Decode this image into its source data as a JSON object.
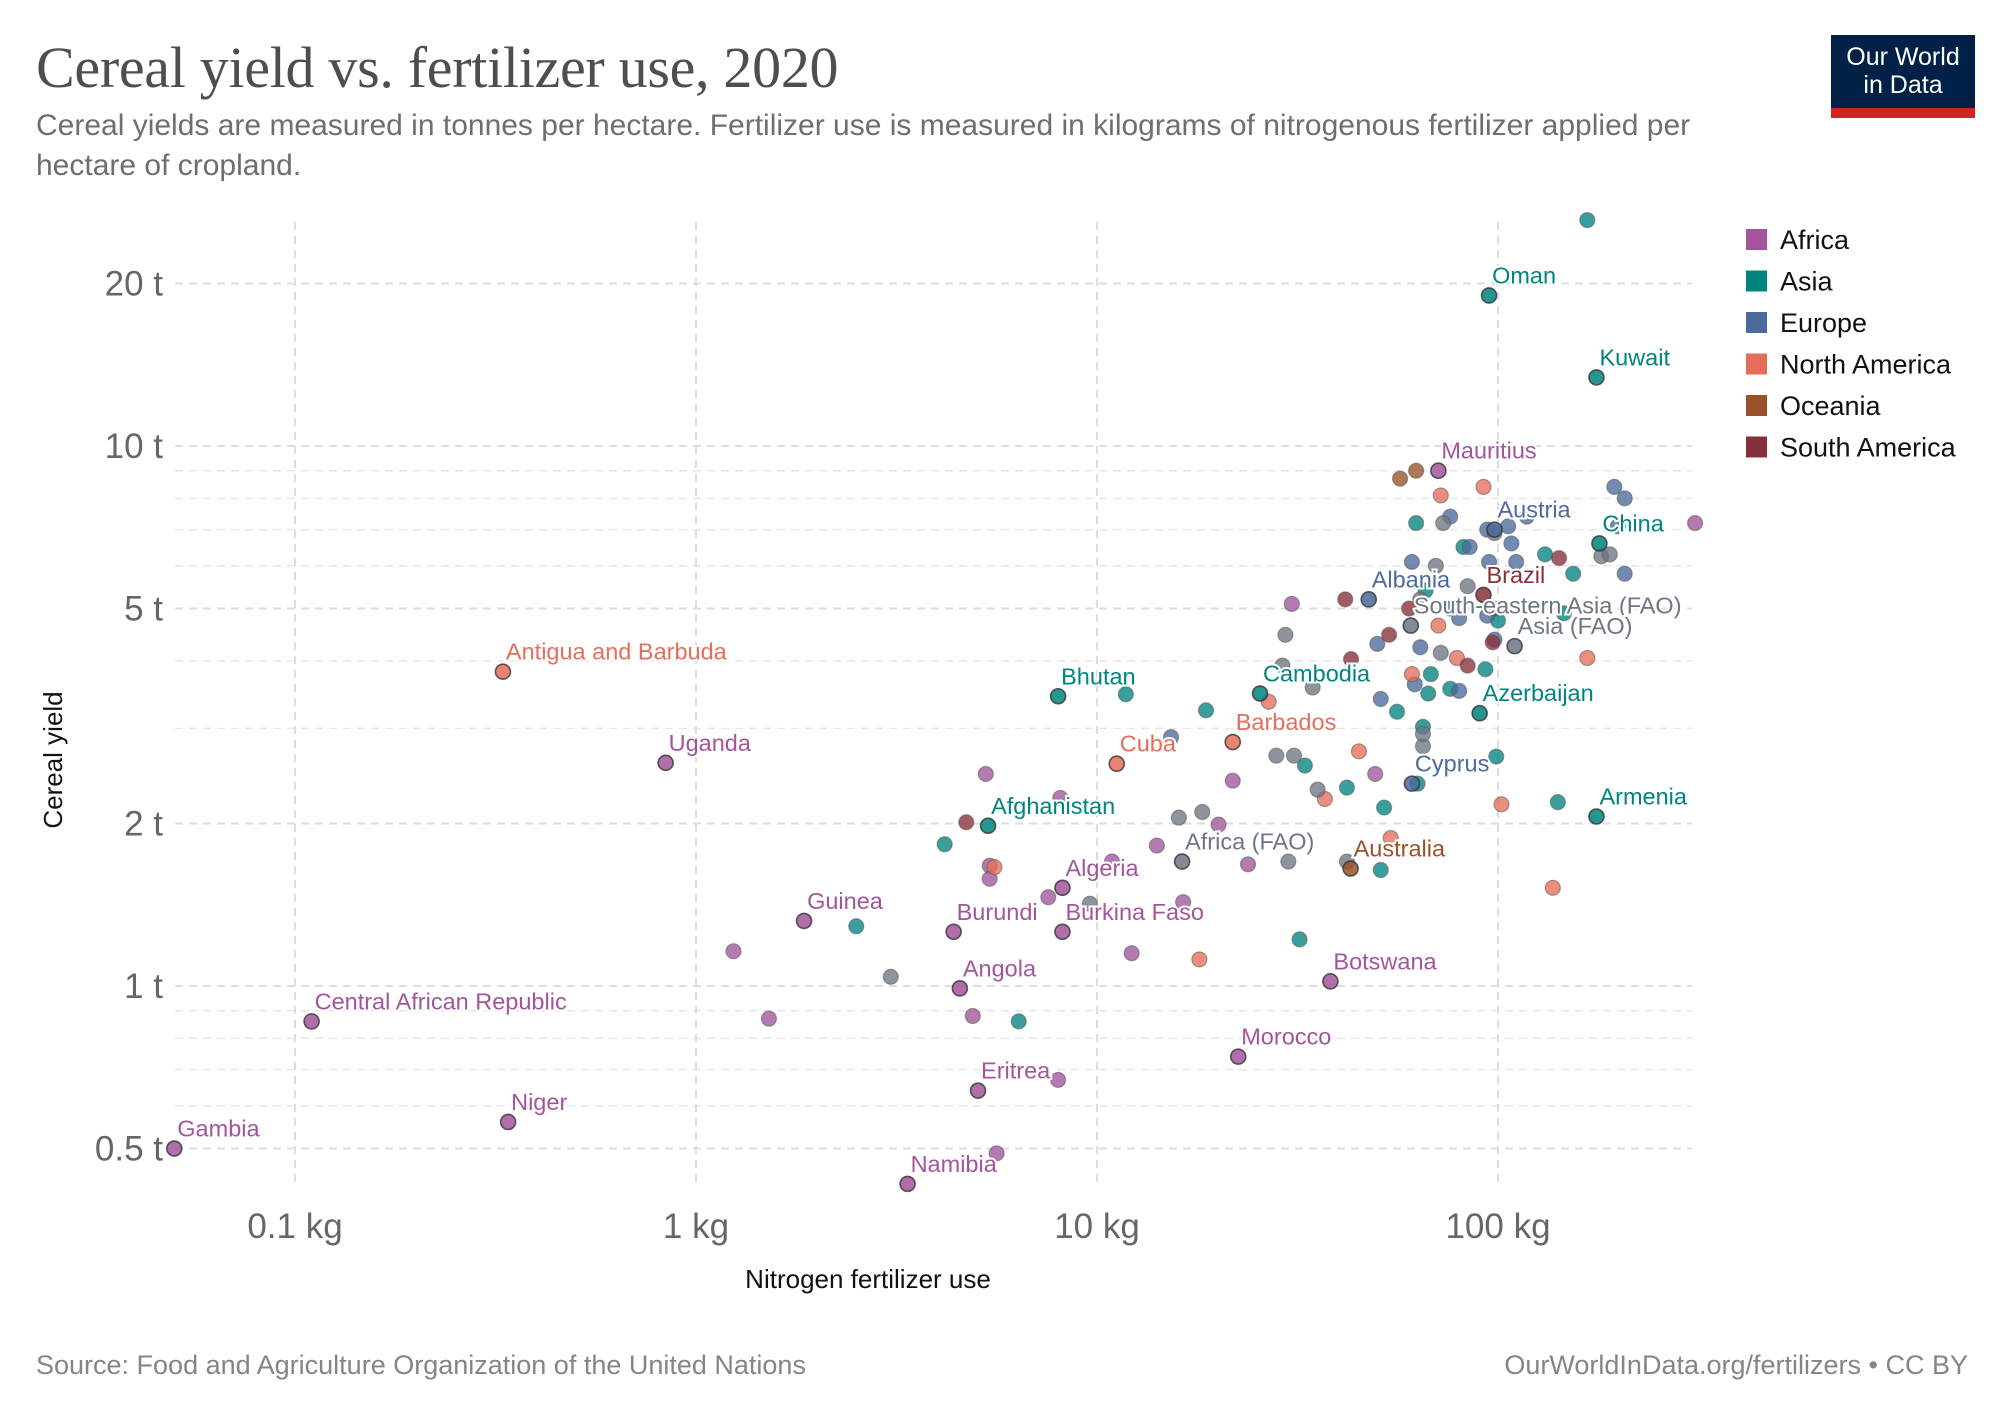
{
  "header": {
    "title": "Cereal yield vs. fertilizer use, 2020",
    "subtitle": "Cereal yields are measured in tonnes per hectare. Fertilizer use is measured in kilograms of nitrogenous fertilizer applied per hectare of cropland.",
    "logo_line1": "Our World",
    "logo_line2": "in Data"
  },
  "footer": {
    "source": "Source: Food and Agriculture Organization of the United Nations",
    "credit": "OurWorldInData.org/fertilizers • CC BY"
  },
  "colors": {
    "Africa": "#a2559c",
    "Asia": "#00847e",
    "Europe": "#4c6a9c",
    "North America": "#e56e5a",
    "Oceania": "#9a5129",
    "South America": "#883039",
    "Aggregate": "#6d7683",
    "logo_bg": "#002147",
    "logo_bar": "#ce261e"
  },
  "chart_data": {
    "type": "scatter",
    "title": "Cereal yield vs. fertilizer use, 2020",
    "xlabel": "Nitrogen fertilizer use",
    "ylabel": "Cereal yield",
    "xscale": "log",
    "yscale": "log",
    "xlim": [
      0.044,
      340
    ],
    "ylim": [
      0.41,
      27
    ],
    "x_ticks": [
      {
        "value": 0.1,
        "label": "0.1 kg"
      },
      {
        "value": 1,
        "label": "1 kg"
      },
      {
        "value": 10,
        "label": "10 kg"
      },
      {
        "value": 100,
        "label": "100 kg"
      }
    ],
    "y_ticks": [
      {
        "value": 0.5,
        "label": "0.5 t"
      },
      {
        "value": 1,
        "label": "1 t"
      },
      {
        "value": 2,
        "label": "2 t"
      },
      {
        "value": 5,
        "label": "5 t"
      },
      {
        "value": 10,
        "label": "10 t"
      },
      {
        "value": 20,
        "label": "20 t"
      }
    ],
    "y_minor_ticks": [
      0.6,
      0.7,
      0.8,
      0.9,
      3,
      4,
      6,
      7,
      8,
      9
    ],
    "grid": true,
    "legend_position": "right",
    "legend": [
      "Africa",
      "Asia",
      "Europe",
      "North America",
      "Oceania",
      "South America"
    ],
    "labeled_points": [
      {
        "name": "Oman",
        "x": 95,
        "y": 19.0,
        "region": "Asia"
      },
      {
        "name": "Kuwait",
        "x": 176,
        "y": 13.4,
        "region": "Asia"
      },
      {
        "name": "Mauritius",
        "x": 71,
        "y": 9.0,
        "region": "Africa"
      },
      {
        "name": "Austria",
        "x": 98,
        "y": 7.0,
        "region": "Europe"
      },
      {
        "name": "China",
        "x": 179,
        "y": 6.6,
        "region": "Asia"
      },
      {
        "name": "Brazil",
        "x": 92,
        "y": 5.3,
        "region": "South America"
      },
      {
        "name": "Albania",
        "x": 47.6,
        "y": 5.2,
        "region": "Europe"
      },
      {
        "name": "South-eastern Asia (FAO)",
        "x": 60.6,
        "y": 4.65,
        "region": "Aggregate"
      },
      {
        "name": "Asia (FAO)",
        "x": 110,
        "y": 4.26,
        "region": "Aggregate"
      },
      {
        "name": "Antigua and Barbuda",
        "x": 0.33,
        "y": 3.82,
        "region": "North America"
      },
      {
        "name": "Cambodia",
        "x": 25.5,
        "y": 3.48,
        "region": "Asia"
      },
      {
        "name": "Bhutan",
        "x": 8.0,
        "y": 3.44,
        "region": "Asia"
      },
      {
        "name": "Azerbaijan",
        "x": 90,
        "y": 3.2,
        "region": "Asia"
      },
      {
        "name": "Barbados",
        "x": 21.8,
        "y": 2.83,
        "region": "North America"
      },
      {
        "name": "Uganda",
        "x": 0.84,
        "y": 2.59,
        "region": "Africa"
      },
      {
        "name": "Cuba",
        "x": 11.2,
        "y": 2.58,
        "region": "North America"
      },
      {
        "name": "Cyprus",
        "x": 61,
        "y": 2.37,
        "region": "Europe"
      },
      {
        "name": "Armenia",
        "x": 176,
        "y": 2.06,
        "region": "Asia"
      },
      {
        "name": "Afghanistan",
        "x": 5.35,
        "y": 1.98,
        "region": "Asia"
      },
      {
        "name": "Africa (FAO)",
        "x": 16.3,
        "y": 1.7,
        "region": "Aggregate"
      },
      {
        "name": "Australia",
        "x": 42.9,
        "y": 1.65,
        "region": "Oceania"
      },
      {
        "name": "Algeria",
        "x": 8.2,
        "y": 1.52,
        "region": "Africa"
      },
      {
        "name": "Guinea",
        "x": 1.86,
        "y": 1.32,
        "region": "Africa"
      },
      {
        "name": "Burundi",
        "x": 4.39,
        "y": 1.26,
        "region": "Africa"
      },
      {
        "name": "Burkina Faso",
        "x": 8.2,
        "y": 1.26,
        "region": "Africa"
      },
      {
        "name": "Botswana",
        "x": 38.2,
        "y": 1.02,
        "region": "Africa"
      },
      {
        "name": "Angola",
        "x": 4.55,
        "y": 0.99,
        "region": "Africa"
      },
      {
        "name": "Central African Republic",
        "x": 0.11,
        "y": 0.86,
        "region": "Africa"
      },
      {
        "name": "Morocco",
        "x": 22.5,
        "y": 0.74,
        "region": "Africa"
      },
      {
        "name": "Eritrea",
        "x": 5.05,
        "y": 0.64,
        "region": "Africa"
      },
      {
        "name": "Niger",
        "x": 0.34,
        "y": 0.56,
        "region": "Africa"
      },
      {
        "name": "Gambia",
        "x": 0.05,
        "y": 0.5,
        "region": "Africa"
      },
      {
        "name": "Namibia",
        "x": 3.37,
        "y": 0.43,
        "region": "Africa"
      }
    ],
    "unlabeled_points": [
      [
        167,
        26.2,
        "Asia"
      ],
      [
        30.6,
        5.1,
        "Africa"
      ],
      [
        310,
        7.2,
        "Africa"
      ],
      [
        5.28,
        2.47,
        "Africa"
      ],
      [
        8.1,
        2.23,
        "Africa"
      ],
      [
        5.4,
        1.67,
        "Africa"
      ],
      [
        5.4,
        1.58,
        "Africa"
      ],
      [
        7.56,
        1.46,
        "Africa"
      ],
      [
        14.1,
        1.82,
        "Africa"
      ],
      [
        20.1,
        1.99,
        "Africa"
      ],
      [
        21.8,
        2.4,
        "Africa"
      ],
      [
        49.4,
        2.47,
        "Africa"
      ],
      [
        23.8,
        1.68,
        "Africa"
      ],
      [
        16.4,
        1.43,
        "Africa"
      ],
      [
        1.24,
        1.16,
        "Africa"
      ],
      [
        1.52,
        0.87,
        "Africa"
      ],
      [
        4.9,
        0.88,
        "Africa"
      ],
      [
        12.2,
        1.15,
        "Africa"
      ],
      [
        10.9,
        1.7,
        "Africa"
      ],
      [
        5.62,
        0.49,
        "Africa"
      ],
      [
        8.0,
        0.67,
        "Africa"
      ],
      [
        62.5,
        7.2,
        "Asia"
      ],
      [
        82,
        6.5,
        "Asia"
      ],
      [
        131,
        6.3,
        "Asia"
      ],
      [
        154,
        5.8,
        "Asia"
      ],
      [
        146,
        4.9,
        "Asia"
      ],
      [
        100,
        4.75,
        "Asia"
      ],
      [
        66,
        5.4,
        "Asia"
      ],
      [
        68,
        3.78,
        "Asia"
      ],
      [
        67,
        3.48,
        "Asia"
      ],
      [
        56,
        3.22,
        "Asia"
      ],
      [
        65,
        3.02,
        "Asia"
      ],
      [
        76,
        3.55,
        "Asia"
      ],
      [
        93,
        3.86,
        "Asia"
      ],
      [
        99,
        2.66,
        "Asia"
      ],
      [
        52,
        2.14,
        "Asia"
      ],
      [
        42,
        2.33,
        "Asia"
      ],
      [
        63,
        2.37,
        "Asia"
      ],
      [
        33,
        2.56,
        "Asia"
      ],
      [
        18.7,
        3.24,
        "Asia"
      ],
      [
        11.8,
        3.47,
        "Asia"
      ],
      [
        51,
        1.64,
        "Asia"
      ],
      [
        32,
        1.22,
        "Asia"
      ],
      [
        141,
        2.19,
        "Asia"
      ],
      [
        4.17,
        1.83,
        "Asia"
      ],
      [
        2.51,
        1.29,
        "Asia"
      ],
      [
        6.38,
        0.86,
        "Asia"
      ],
      [
        76,
        7.4,
        "Europe"
      ],
      [
        85,
        6.5,
        "Europe"
      ],
      [
        94,
        7.0,
        "Europe"
      ],
      [
        106,
        7.1,
        "Europe"
      ],
      [
        118,
        7.4,
        "Europe"
      ],
      [
        108,
        6.6,
        "Europe"
      ],
      [
        111,
        6.1,
        "Europe"
      ],
      [
        195,
        8.4,
        "Europe"
      ],
      [
        207,
        8.0,
        "Europe"
      ],
      [
        199,
        7.1,
        "Europe"
      ],
      [
        207,
        5.8,
        "Europe"
      ],
      [
        95,
        6.1,
        "Europe"
      ],
      [
        61,
        6.1,
        "Europe"
      ],
      [
        76,
        5.0,
        "Europe"
      ],
      [
        80,
        4.8,
        "Europe"
      ],
      [
        50,
        4.3,
        "Europe"
      ],
      [
        64,
        4.24,
        "Europe"
      ],
      [
        51,
        3.4,
        "Europe"
      ],
      [
        80,
        3.52,
        "Europe"
      ],
      [
        62,
        3.62,
        "Europe"
      ],
      [
        15.3,
        2.89,
        "Europe"
      ],
      [
        98,
        4.38,
        "Europe"
      ],
      [
        94,
        4.85,
        "Europe"
      ],
      [
        92,
        8.4,
        "North America"
      ],
      [
        72,
        8.1,
        "North America"
      ],
      [
        61,
        3.78,
        "North America"
      ],
      [
        71,
        4.65,
        "North America"
      ],
      [
        79,
        4.05,
        "North America"
      ],
      [
        26.8,
        3.36,
        "North America"
      ],
      [
        45,
        2.72,
        "North America"
      ],
      [
        37,
        2.22,
        "North America"
      ],
      [
        54,
        1.88,
        "North America"
      ],
      [
        102,
        2.17,
        "North America"
      ],
      [
        137,
        1.52,
        "North America"
      ],
      [
        167,
        4.05,
        "North America"
      ],
      [
        5.55,
        1.66,
        "North America"
      ],
      [
        18,
        1.12,
        "North America"
      ],
      [
        57,
        8.7,
        "Oceania"
      ],
      [
        62.5,
        9.0,
        "Oceania"
      ],
      [
        41.6,
        5.2,
        "South America"
      ],
      [
        60,
        5.0,
        "South America"
      ],
      [
        43,
        4.03,
        "South America"
      ],
      [
        84,
        3.92,
        "South America"
      ],
      [
        97,
        4.33,
        "South America"
      ],
      [
        98,
        5.0,
        "South America"
      ],
      [
        142,
        6.2,
        "South America"
      ],
      [
        4.72,
        2.01,
        "South America"
      ],
      [
        53.5,
        4.47,
        "South America"
      ],
      [
        98,
        6.9,
        "Aggregate"
      ],
      [
        73,
        7.2,
        "Aggregate"
      ],
      [
        70,
        6.0,
        "Aggregate"
      ],
      [
        84,
        5.5,
        "Aggregate"
      ],
      [
        64,
        5.2,
        "Aggregate"
      ],
      [
        72,
        4.14,
        "Aggregate"
      ],
      [
        181,
        6.25,
        "Aggregate"
      ],
      [
        190,
        6.3,
        "Aggregate"
      ],
      [
        65,
        2.78,
        "Aggregate"
      ],
      [
        65,
        2.93,
        "Aggregate"
      ],
      [
        31,
        2.67,
        "Aggregate"
      ],
      [
        28,
        2.67,
        "Aggregate"
      ],
      [
        35.5,
        2.31,
        "Aggregate"
      ],
      [
        30,
        1.7,
        "Aggregate"
      ],
      [
        16,
        2.05,
        "Aggregate"
      ],
      [
        18.3,
        2.1,
        "Aggregate"
      ],
      [
        42,
        1.7,
        "Aggregate"
      ],
      [
        3.06,
        1.04,
        "Aggregate"
      ],
      [
        9.6,
        1.42,
        "Aggregate"
      ],
      [
        29,
        3.92,
        "Aggregate"
      ],
      [
        34.5,
        3.57,
        "Aggregate"
      ],
      [
        29.5,
        4.47,
        "Aggregate"
      ]
    ]
  }
}
